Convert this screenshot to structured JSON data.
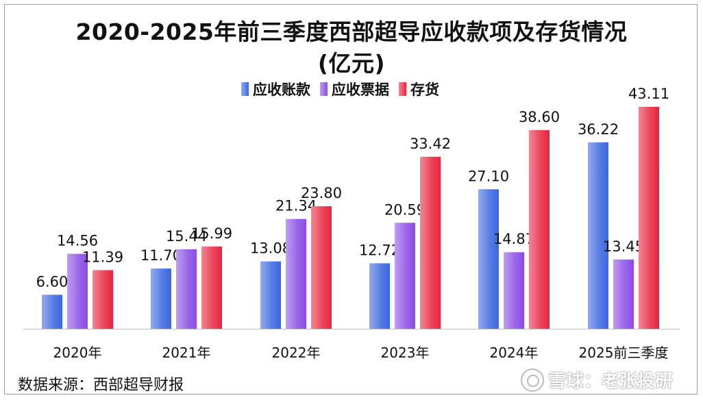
{
  "title_line1": "2020-2025年前三季度西部超导应收款项及存货情况",
  "title_line2": "(亿元)",
  "source": "数据来源：西部超导财报",
  "watermark": "雪球：老张投研",
  "colors": {
    "receivables": "#3a66e0",
    "notes": "#8a4ce6",
    "inventory": "#e8253f"
  },
  "chart_data": {
    "type": "bar",
    "title": "2020-2025年前三季度西部超导应收款项及存货情况(亿元)",
    "categories": [
      "2020年",
      "2021年",
      "2022年",
      "2023年",
      "2024年",
      "2025前三季度"
    ],
    "series": [
      {
        "name": "应收账款",
        "values": [
          6.6,
          11.7,
          13.08,
          12.72,
          27.1,
          36.22
        ]
      },
      {
        "name": "应收票据",
        "values": [
          14.56,
          15.44,
          21.34,
          20.59,
          14.87,
          13.45
        ]
      },
      {
        "name": "存货",
        "values": [
          11.39,
          15.99,
          23.8,
          33.42,
          38.6,
          43.11
        ]
      }
    ],
    "ylim": [
      0,
      45
    ],
    "grid": false,
    "legend": "top"
  }
}
